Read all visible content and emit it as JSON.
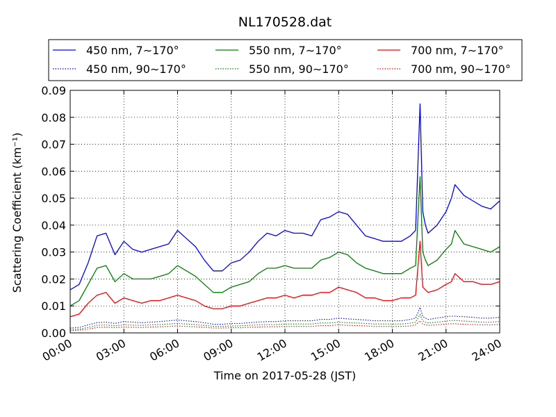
{
  "chart_data": {
    "type": "line",
    "title": "NL170528.dat",
    "xlabel": "Time on 2017-05-28 (JST)",
    "ylabel": "Scattering Coefficient (km⁻¹)",
    "xlim": [
      "00:00",
      "24:00"
    ],
    "ylim": [
      0.0,
      0.09
    ],
    "x_ticks": [
      "00:00",
      "03:00",
      "06:00",
      "09:00",
      "12:00",
      "15:00",
      "18:00",
      "21:00",
      "24:00"
    ],
    "y_ticks": [
      "0.00",
      "0.01",
      "0.02",
      "0.03",
      "0.04",
      "0.05",
      "0.06",
      "0.07",
      "0.08",
      "0.09"
    ],
    "grid": true,
    "legend_position": "top, above plot, 3 columns",
    "x_hours": [
      0,
      0.5,
      1.0,
      1.5,
      2.0,
      2.5,
      3.0,
      3.5,
      4.0,
      4.5,
      5.0,
      5.5,
      6.0,
      6.5,
      7.0,
      7.5,
      8.0,
      8.5,
      9.0,
      9.5,
      10.0,
      10.5,
      11.0,
      11.5,
      12.0,
      12.5,
      13.0,
      13.5,
      14.0,
      14.5,
      15.0,
      15.5,
      16.0,
      16.5,
      17.0,
      17.5,
      18.0,
      18.5,
      19.0,
      19.3,
      19.55,
      19.7,
      19.85,
      20.0,
      20.5,
      21.0,
      21.3,
      21.5,
      22.0,
      22.5,
      23.0,
      23.5,
      24.0
    ],
    "series": [
      {
        "name": "450 nm, 7∼170°",
        "color": "#0000ff",
        "style": "solid",
        "values": [
          0.016,
          0.018,
          0.026,
          0.036,
          0.037,
          0.029,
          0.034,
          0.031,
          0.03,
          0.031,
          0.032,
          0.033,
          0.038,
          0.035,
          0.032,
          0.027,
          0.023,
          0.023,
          0.026,
          0.027,
          0.03,
          0.034,
          0.037,
          0.036,
          0.038,
          0.037,
          0.037,
          0.036,
          0.042,
          0.043,
          0.045,
          0.044,
          0.04,
          0.036,
          0.035,
          0.034,
          0.034,
          0.034,
          0.036,
          0.038,
          0.085,
          0.045,
          0.04,
          0.037,
          0.04,
          0.045,
          0.05,
          0.055,
          0.051,
          0.049,
          0.047,
          0.046,
          0.049
        ]
      },
      {
        "name": "550 nm, 7∼170°",
        "color": "#008000",
        "style": "solid",
        "values": [
          0.01,
          0.012,
          0.018,
          0.024,
          0.025,
          0.019,
          0.022,
          0.02,
          0.02,
          0.02,
          0.021,
          0.022,
          0.025,
          0.023,
          0.021,
          0.018,
          0.015,
          0.015,
          0.017,
          0.018,
          0.019,
          0.022,
          0.024,
          0.024,
          0.025,
          0.024,
          0.024,
          0.024,
          0.027,
          0.028,
          0.03,
          0.029,
          0.026,
          0.024,
          0.023,
          0.022,
          0.022,
          0.022,
          0.024,
          0.025,
          0.058,
          0.03,
          0.027,
          0.025,
          0.027,
          0.031,
          0.033,
          0.038,
          0.033,
          0.032,
          0.031,
          0.03,
          0.032
        ]
      },
      {
        "name": "700 nm, 7∼170°",
        "color": "#ff0000",
        "style": "solid",
        "values": [
          0.006,
          0.007,
          0.011,
          0.014,
          0.015,
          0.011,
          0.013,
          0.012,
          0.011,
          0.012,
          0.012,
          0.013,
          0.014,
          0.013,
          0.012,
          0.01,
          0.009,
          0.009,
          0.01,
          0.01,
          0.011,
          0.012,
          0.013,
          0.013,
          0.014,
          0.013,
          0.014,
          0.014,
          0.015,
          0.015,
          0.017,
          0.016,
          0.015,
          0.013,
          0.013,
          0.012,
          0.012,
          0.013,
          0.013,
          0.014,
          0.034,
          0.017,
          0.016,
          0.015,
          0.016,
          0.018,
          0.019,
          0.022,
          0.019,
          0.019,
          0.018,
          0.018,
          0.019
        ]
      },
      {
        "name": "450 nm, 90∼170°",
        "color": "#0000ff",
        "style": "dotted",
        "values": [
          0.0018,
          0.002,
          0.003,
          0.0038,
          0.004,
          0.0035,
          0.0042,
          0.004,
          0.0038,
          0.004,
          0.0042,
          0.0045,
          0.0048,
          0.0045,
          0.0042,
          0.0038,
          0.0032,
          0.0032,
          0.0035,
          0.0035,
          0.0038,
          0.004,
          0.0042,
          0.0042,
          0.0045,
          0.0045,
          0.0045,
          0.0045,
          0.005,
          0.005,
          0.0055,
          0.0052,
          0.005,
          0.0048,
          0.0045,
          0.0045,
          0.0045,
          0.0045,
          0.005,
          0.0055,
          0.0095,
          0.006,
          0.0055,
          0.005,
          0.0055,
          0.006,
          0.0062,
          0.0062,
          0.006,
          0.0058,
          0.0055,
          0.0055,
          0.0058
        ]
      },
      {
        "name": "550 nm, 90∼170°",
        "color": "#008000",
        "style": "dotted",
        "values": [
          0.0012,
          0.0014,
          0.002,
          0.0028,
          0.003,
          0.0026,
          0.003,
          0.0029,
          0.0028,
          0.003,
          0.0031,
          0.0033,
          0.0035,
          0.0033,
          0.0031,
          0.0028,
          0.0024,
          0.0024,
          0.0026,
          0.0026,
          0.0028,
          0.003,
          0.0031,
          0.0031,
          0.0033,
          0.0033,
          0.0033,
          0.0033,
          0.0037,
          0.0037,
          0.004,
          0.0038,
          0.0037,
          0.0035,
          0.0033,
          0.0033,
          0.0033,
          0.0033,
          0.0036,
          0.004,
          0.0068,
          0.0044,
          0.004,
          0.0037,
          0.004,
          0.0044,
          0.0046,
          0.0046,
          0.0044,
          0.0042,
          0.004,
          0.004,
          0.0042
        ]
      },
      {
        "name": "700 nm, 90∼170°",
        "color": "#ff0000",
        "style": "dotted",
        "values": [
          0.0008,
          0.001,
          0.0014,
          0.002,
          0.0022,
          0.0019,
          0.0022,
          0.0021,
          0.002,
          0.0022,
          0.0023,
          0.0024,
          0.0026,
          0.0024,
          0.0023,
          0.0021,
          0.0018,
          0.0018,
          0.0019,
          0.0019,
          0.0021,
          0.0022,
          0.0023,
          0.0023,
          0.0024,
          0.0024,
          0.0024,
          0.0024,
          0.0027,
          0.0027,
          0.003,
          0.0028,
          0.0027,
          0.0026,
          0.0024,
          0.0024,
          0.0024,
          0.0024,
          0.0026,
          0.003,
          0.0045,
          0.0032,
          0.003,
          0.0028,
          0.003,
          0.0033,
          0.0034,
          0.0034,
          0.0032,
          0.0031,
          0.003,
          0.003,
          0.0031
        ]
      }
    ]
  }
}
